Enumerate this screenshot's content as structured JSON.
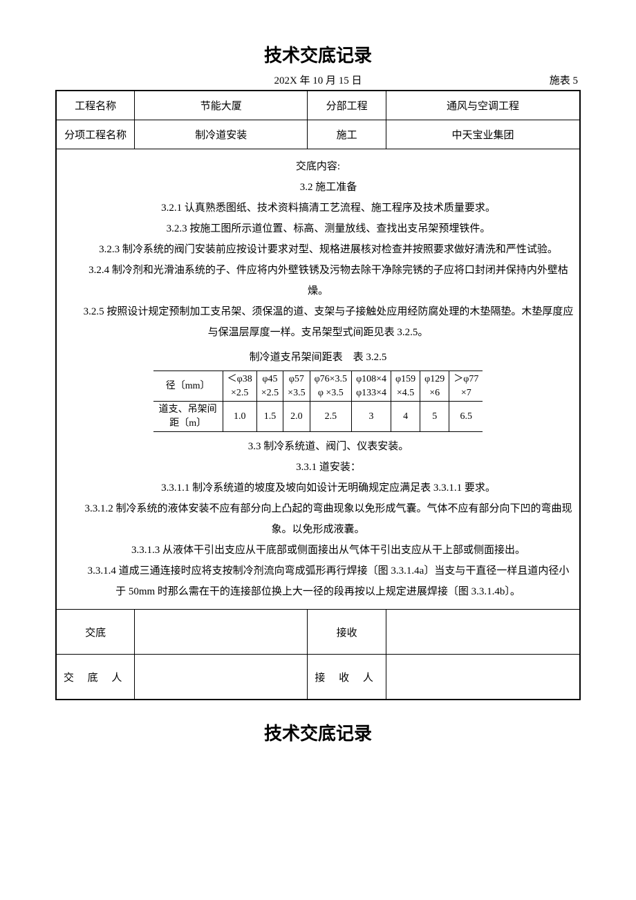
{
  "title": "技术交底记录",
  "date": "202X 年 10 月 15 日",
  "form_no": "施表 5",
  "header": {
    "project_name_label": "工程名称",
    "project_name_value": "节能大厦",
    "division_label": "分部工程",
    "division_value": "通风与空调工程",
    "subitem_label": "分项工程名称",
    "subitem_value": "制冷道安装",
    "construction_label": "施工",
    "construction_value": "中天宝业集团"
  },
  "content": {
    "head": "交底内容:",
    "p1": "3.2 施工准备",
    "p2": "3.2.1 认真熟悉图纸、技术资料搞清工艺流程、施工程序及技术质量要求。",
    "p3": "3.2.3 按施工图所示道位置、标高、测量放线、查找出支吊架预埋铁件。",
    "p4": "3.2.3 制冷系统的阀门安装前应按设计要求对型、规格进展核对检查并按照要求做好清洗和严性试验。",
    "p5": "3.2.4 制冷剂和光滑油系统的子、件应将内外壁铁锈及污物去除干净除完锈的子应将口封闭并保持内外壁枯燥。",
    "p6": "3.2.5 按照设计规定预制加工支吊架、须保温的道、支架与子接触处应用经防腐处理的木垫隔垫。木垫厚度应与保温层厚度一样。支吊架型式间距见表 3.2.5。",
    "inner_caption": "制冷道支吊架间距表　表 3.2.5",
    "inner_table": {
      "row1_label": "径〔mm〕",
      "row1": [
        "＜φ38\n×2.5",
        "φ45\n×2.5",
        "φ57\n×3.5",
        "φ76×3.5\nφ ×3.5",
        "φ108×4\nφ133×4",
        "φ159\n×4.5",
        "φ129\n×6",
        "＞φ77\n×7"
      ],
      "row2_label": "道支、吊架间\n距〔m〕",
      "row2": [
        "1.0",
        "1.5",
        "2.0",
        "2.5",
        "3",
        "4",
        "5",
        "6.5"
      ]
    },
    "p7": "3.3 制冷系统道、阀门、仪表安装。",
    "p8": "3.3.1 道安装：",
    "p9": "3.3.1.1 制冷系统道的坡度及坡向如设计无明确规定应满足表 3.3.1.1 要求。",
    "p10": "3.3.1.2 制冷系统的液体安装不应有部分向上凸起的弯曲现象以免形成气囊。气体不应有部分向下凹的弯曲现象。以免形成液囊。",
    "p11": "3.3.1.3 从液体干引出支应从干底部或侧面接出从气体干引出支应从干上部或侧面接出。",
    "p12": "3.3.1.4 道成三通连接时应将支按制冷剂流向弯成弧形再行焊接〔图 3.3.1.4a〕当支与干直径一样且道内径小于 50mm 时那么需在干的连接部位换上大一径的段再按以上规定进展焊接〔图 3.3.1.4b〕。"
  },
  "sign": {
    "jd_label": "交底",
    "js_label": "接收",
    "jdr_label": "交 底 人",
    "jsr_label": "接 收 人"
  },
  "title2": "技术交底记录"
}
